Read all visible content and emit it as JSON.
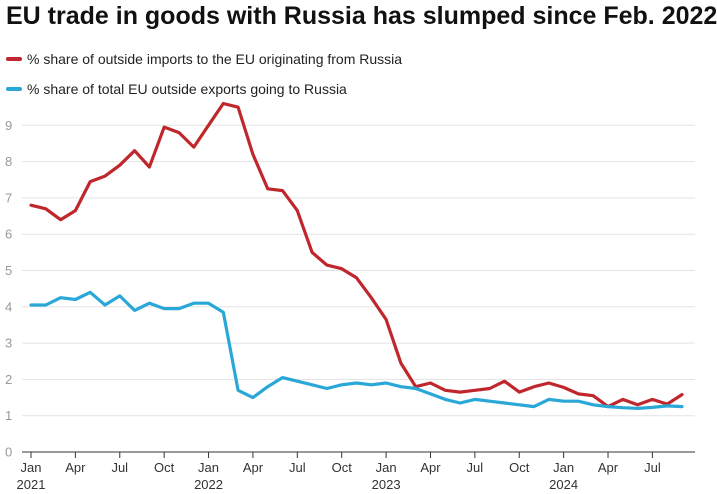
{
  "chart_data": {
    "type": "line",
    "title": "EU trade in goods with Russia has slumped since Feb. 2022",
    "xlabel": "",
    "ylabel": "",
    "ylim": [
      0,
      9.5
    ],
    "yticks": [
      0,
      1,
      2,
      3,
      4,
      5,
      6,
      7,
      8,
      9
    ],
    "grid": true,
    "legend_position": "top-left",
    "x": [
      "2021-01",
      "2021-02",
      "2021-03",
      "2021-04",
      "2021-05",
      "2021-06",
      "2021-07",
      "2021-08",
      "2021-09",
      "2021-10",
      "2021-11",
      "2021-12",
      "2022-01",
      "2022-02",
      "2022-03",
      "2022-04",
      "2022-05",
      "2022-06",
      "2022-07",
      "2022-08",
      "2022-09",
      "2022-10",
      "2022-11",
      "2022-12",
      "2023-01",
      "2023-02",
      "2023-03",
      "2023-04",
      "2023-05",
      "2023-06",
      "2023-07",
      "2023-08",
      "2023-09",
      "2023-10",
      "2023-11",
      "2023-12",
      "2024-01",
      "2024-02",
      "2024-03",
      "2024-04",
      "2024-05",
      "2024-06",
      "2024-07",
      "2024-08",
      "2024-09"
    ],
    "x_ticks": [
      {
        "month": "2021-01",
        "label": "Jan",
        "year": "2021"
      },
      {
        "month": "2021-04",
        "label": "Apr",
        "year": ""
      },
      {
        "month": "2021-07",
        "label": "Jul",
        "year": ""
      },
      {
        "month": "2021-10",
        "label": "Oct",
        "year": ""
      },
      {
        "month": "2022-01",
        "label": "Jan",
        "year": "2022"
      },
      {
        "month": "2022-04",
        "label": "Apr",
        "year": ""
      },
      {
        "month": "2022-07",
        "label": "Jul",
        "year": ""
      },
      {
        "month": "2022-10",
        "label": "Oct",
        "year": ""
      },
      {
        "month": "2023-01",
        "label": "Jan",
        "year": "2023"
      },
      {
        "month": "2023-04",
        "label": "Apr",
        "year": ""
      },
      {
        "month": "2023-07",
        "label": "Jul",
        "year": ""
      },
      {
        "month": "2023-10",
        "label": "Oct",
        "year": ""
      },
      {
        "month": "2024-01",
        "label": "Jan",
        "year": "2024"
      },
      {
        "month": "2024-04",
        "label": "Apr",
        "year": ""
      },
      {
        "month": "2024-07",
        "label": "Jul",
        "year": ""
      }
    ],
    "series": [
      {
        "name": "% share of outside imports to the EU originating from Russia",
        "color": "#c0272d",
        "values": [
          6.8,
          6.7,
          6.4,
          6.65,
          7.45,
          7.6,
          7.9,
          8.3,
          7.85,
          8.95,
          8.8,
          8.4,
          9.0,
          9.6,
          9.5,
          8.2,
          7.25,
          7.2,
          6.65,
          5.5,
          5.15,
          5.05,
          4.8,
          4.25,
          3.65,
          2.45,
          1.8,
          1.9,
          1.7,
          1.65,
          1.7,
          1.75,
          1.95,
          1.65,
          1.8,
          1.9,
          1.78,
          1.6,
          1.55,
          1.25,
          1.45,
          1.3,
          1.45,
          1.32,
          1.58
        ]
      },
      {
        "name": "% share of total EU outside exports going to Russia",
        "color": "#29a8d8",
        "values": [
          4.05,
          4.05,
          4.25,
          4.2,
          4.4,
          4.05,
          4.3,
          3.9,
          4.1,
          3.95,
          3.95,
          4.1,
          4.1,
          3.85,
          1.7,
          1.5,
          1.8,
          2.05,
          1.95,
          1.85,
          1.75,
          1.85,
          1.9,
          1.85,
          1.9,
          1.8,
          1.75,
          1.6,
          1.45,
          1.35,
          1.45,
          1.4,
          1.35,
          1.3,
          1.25,
          1.45,
          1.4,
          1.4,
          1.3,
          1.25,
          1.22,
          1.2,
          1.23,
          1.27,
          1.25
        ]
      }
    ]
  }
}
